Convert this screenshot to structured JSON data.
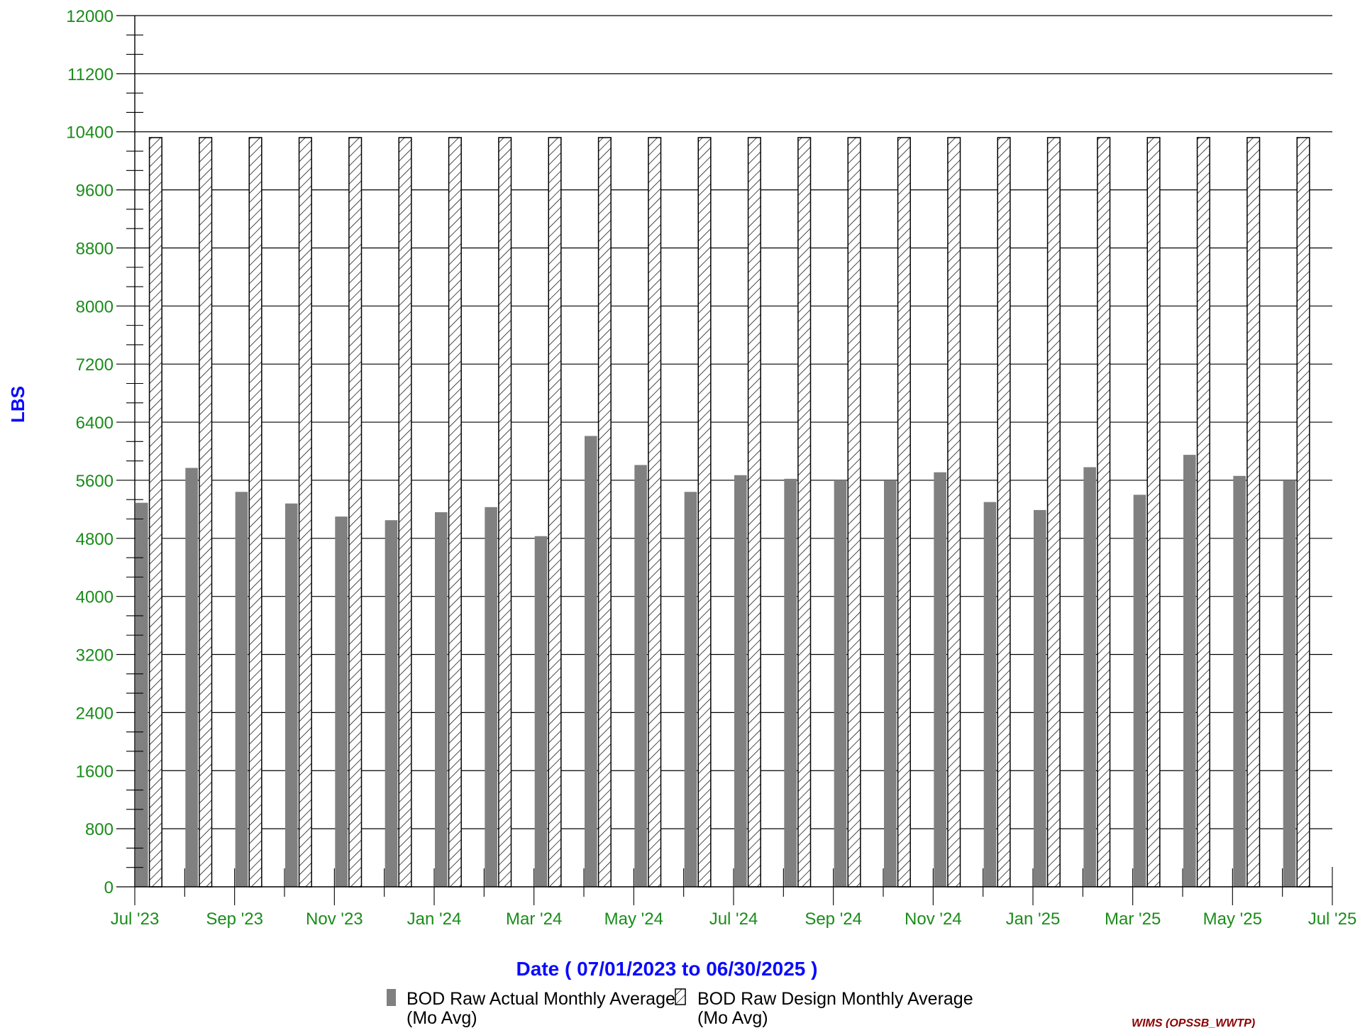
{
  "chart_data": {
    "type": "bar",
    "ylabel": "LBS",
    "xlabel": "Date  ( 07/01/2023  to  06/30/2025 )",
    "ylim": [
      0,
      12000
    ],
    "y_ticks": [
      0,
      800,
      1600,
      2400,
      3200,
      4000,
      4800,
      5600,
      6400,
      7200,
      8000,
      8800,
      9600,
      10400,
      11200,
      12000
    ],
    "x_tick_labels": [
      "Jul '23",
      "Sep '23",
      "Nov '23",
      "Jan '24",
      "Mar '24",
      "May '24",
      "Jul '24",
      "Sep '24",
      "Nov '24",
      "Jan '25",
      "Mar '25",
      "May '25",
      "Jul '25"
    ],
    "categories": [
      "Jul 2023",
      "Aug 2023",
      "Sep 2023",
      "Oct 2023",
      "Nov 2023",
      "Dec 2023",
      "Jan 2024",
      "Feb 2024",
      "Mar 2024",
      "Apr 2024",
      "May 2024",
      "Jun 2024",
      "Jul 2024",
      "Aug 2024",
      "Sep 2024",
      "Oct 2024",
      "Nov 2024",
      "Dec 2024",
      "Jan 2025",
      "Feb 2025",
      "Mar 2025",
      "Apr 2025",
      "May 2025",
      "Jun 2025"
    ],
    "grid": true,
    "legend_position": "bottom",
    "series": [
      {
        "name": "BOD Raw Actual Monthly Average",
        "name_line2": "(Mo  Avg)",
        "color": "#808080",
        "pattern": "solid",
        "values": [
          5290,
          5770,
          5440,
          5280,
          5100,
          5050,
          5160,
          5230,
          4830,
          6210,
          5810,
          5440,
          5670,
          5620,
          5600,
          5590,
          5710,
          5300,
          5190,
          5780,
          5400,
          5950,
          5660,
          5590
        ]
      },
      {
        "name": "BOD Raw Design Monthly Average",
        "name_line2": "(Mo  Avg)",
        "color": "#ffffff",
        "pattern": "hatch",
        "values": [
          10320,
          10320,
          10320,
          10320,
          10320,
          10320,
          10320,
          10320,
          10320,
          10320,
          10320,
          10320,
          10320,
          10320,
          10320,
          10320,
          10320,
          10320,
          10320,
          10320,
          10320,
          10320,
          10320,
          10320
        ]
      }
    ]
  },
  "footer": {
    "source": "WIMS (OPSSB_WWTP)"
  }
}
